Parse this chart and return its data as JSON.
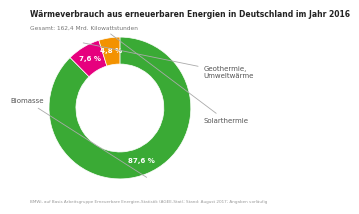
{
  "title": "Wärmeverbrauch aus erneuerbaren Energien in Deutschland im Jahr 2016",
  "subtitle": "Gesamt: 162,4 Mrd. Kilowattstunden",
  "footnote": "BMWi, auf Basis Arbeitsgruppe Erneuerbare Energien-Statistik (AGEE-Stat); Stand: August 2017; Angaben vorläufig",
  "slices": [
    {
      "label": "Biomasse",
      "value": 87.6,
      "color": "#3aaa35",
      "pct_label": "87,6 %"
    },
    {
      "label": "Geothermie,\nUmweltwärme",
      "value": 7.6,
      "color": "#e6007e",
      "pct_label": "7,6 %"
    },
    {
      "label": "Solarthermie",
      "value": 4.8,
      "color": "#f39200",
      "pct_label": "4,8 %"
    }
  ],
  "background_color": "#ffffff",
  "title_fontsize": 5.5,
  "subtitle_fontsize": 4.2,
  "footnote_fontsize": 3.0,
  "label_fontsize": 5.0,
  "pct_fontsize": 5.0,
  "donut_width": 0.38,
  "start_angle": 90
}
